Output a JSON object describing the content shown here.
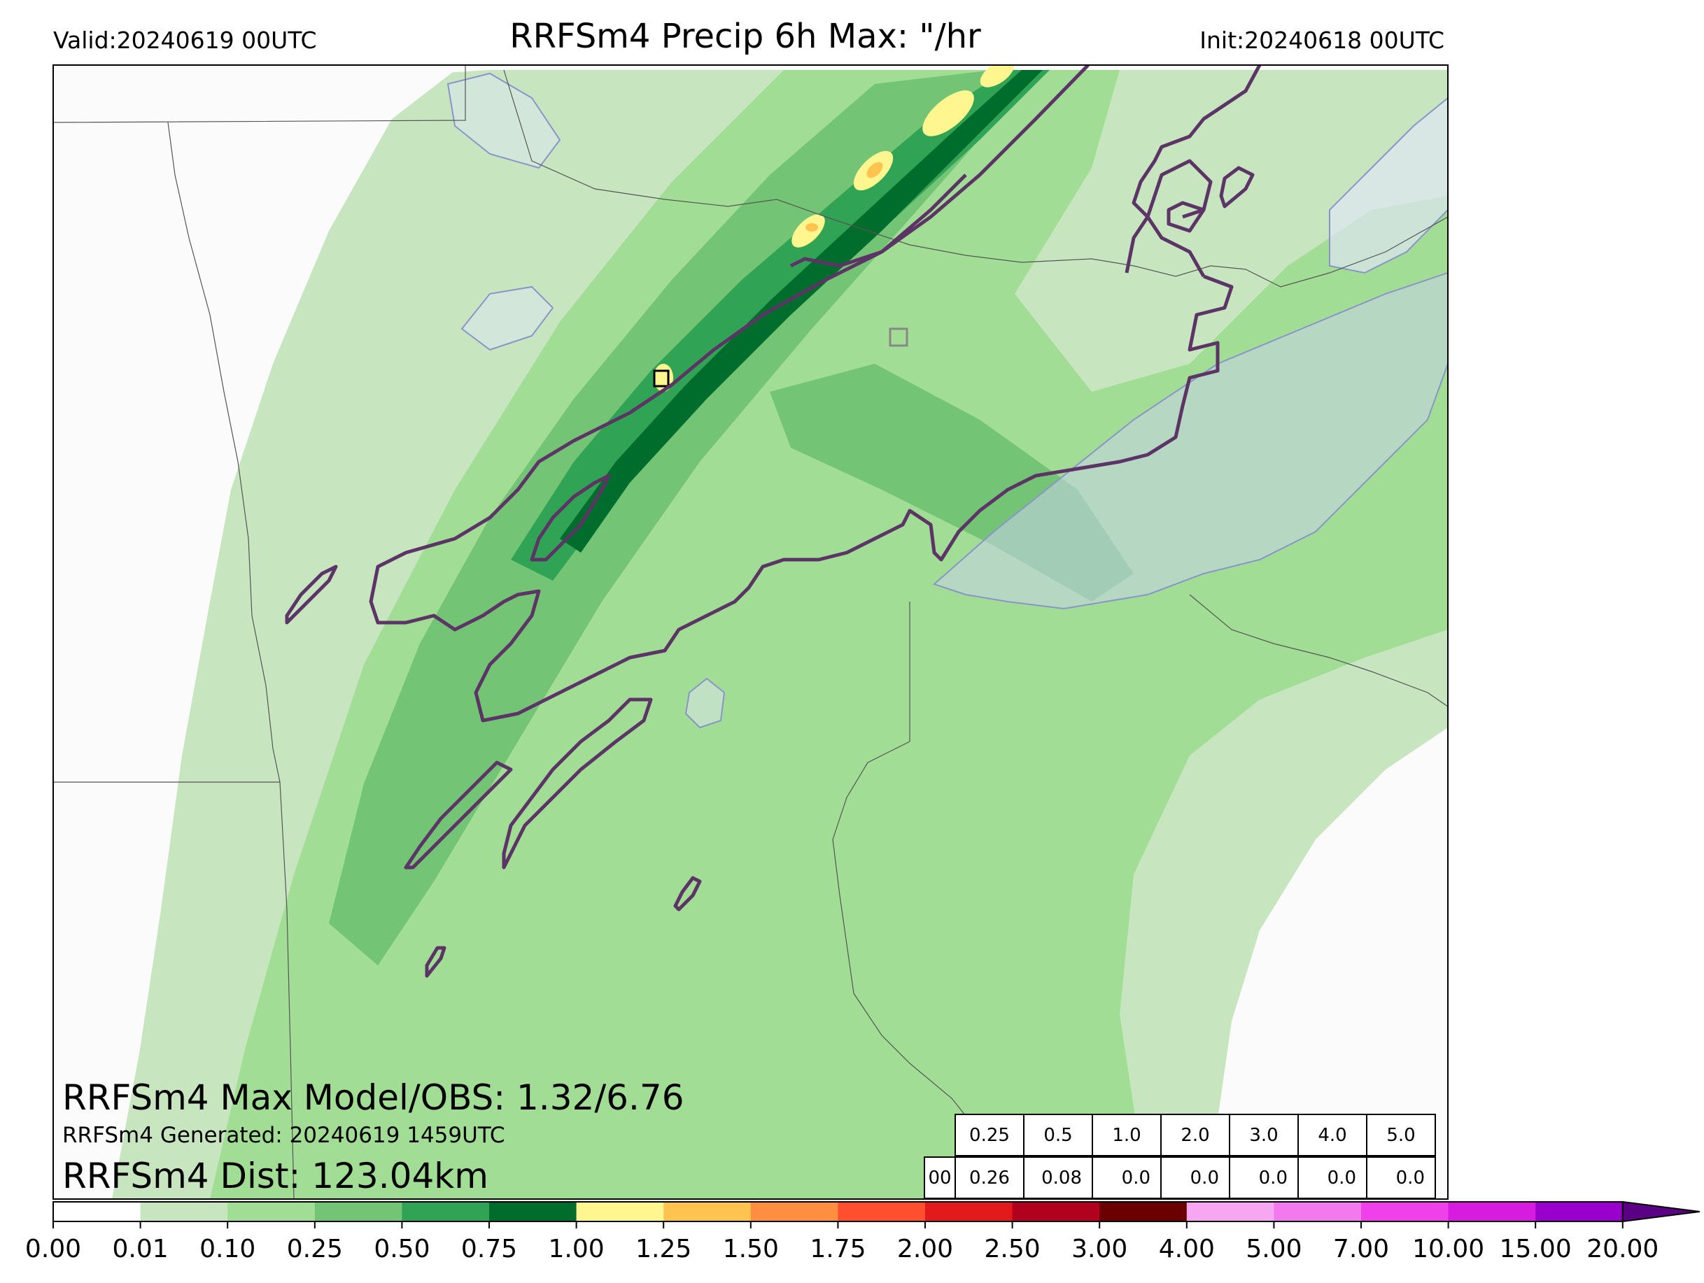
{
  "header": {
    "valid": "Valid:20240619 00UTC",
    "title": "RRFSm4 Precip 6h Max: \"/hr",
    "init": "Init:20240618 00UTC"
  },
  "overlay": {
    "max_model_obs": "RRFSm4 Max Model/OBS: 1.32/6.76",
    "generated": "RRFSm4 Generated: 20240619 1459UTC",
    "distance": "RRFSm4 Dist: 123.04km"
  },
  "stats_table": {
    "thresholds": [
      "0.25",
      "0.5",
      "1.0",
      "2.0",
      "3.0",
      "4.0",
      "5.0"
    ],
    "row_label": "00",
    "values": [
      "0.26",
      "0.08",
      "0.0",
      "0.0",
      "0.0",
      "0.0",
      "0.0"
    ]
  },
  "colorbar": {
    "ticks": [
      "0.00",
      "0.01",
      "0.10",
      "0.25",
      "0.50",
      "0.75",
      "1.00",
      "1.25",
      "1.50",
      "1.75",
      "2.00",
      "2.50",
      "3.00",
      "4.00",
      "5.00",
      "7.00",
      "10.00",
      "15.00",
      "20.00"
    ],
    "colors": [
      "#ffffff",
      "#c7e6c0",
      "#a1dd95",
      "#74c476",
      "#31a354",
      "#006d2c",
      "#fff68f",
      "#ffc34f",
      "#ff8f40",
      "#ff4f2e",
      "#e31a1c",
      "#b2001f",
      "#6b0000",
      "#f7a6f2",
      "#f379ef",
      "#ef40ea",
      "#d81cdf",
      "#9a00cd"
    ],
    "extend_color": "#5b0084"
  },
  "colors": {
    "outline": "#5c3566",
    "water": "#d9e0f2",
    "border": "#555555"
  }
}
